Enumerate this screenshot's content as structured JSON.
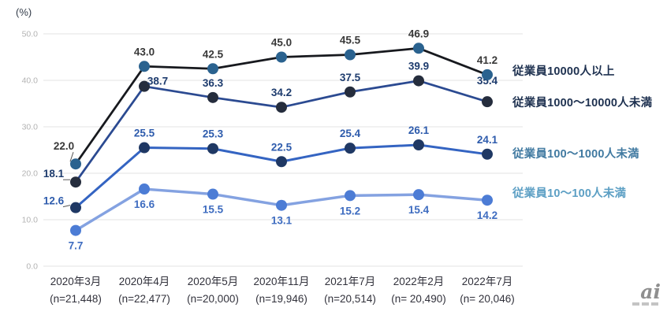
{
  "page": {
    "background": "#ffffff"
  },
  "chart_data": {
    "type": "line",
    "title": "",
    "unit_label": "(%)",
    "grid": true,
    "legend_position": "right",
    "y_axis": {
      "min": 0,
      "max": 50,
      "step": 10,
      "ticks": [
        "0.0",
        "10.0",
        "20.0",
        "30.0",
        "40.0",
        "50.0"
      ],
      "tick_color": "#b3b3b3",
      "grid_color": "#e3e3e3"
    },
    "x_categories": [
      {
        "period": "2020年3月",
        "n": "(n=21,448)"
      },
      {
        "period": "2020年4月",
        "n": "(n=22,477)"
      },
      {
        "period": "2020年5月",
        "n": "(n=20,000)"
      },
      {
        "period": "2020年11月",
        "n": "(n=19,946)"
      },
      {
        "period": "2021年7月",
        "n": "(n=20,514)"
      },
      {
        "period": "2022年2月",
        "n": "(n= 20,490)"
      },
      {
        "period": "2022年7月",
        "n": "(n= 20,046)"
      }
    ],
    "x_label_color": "#31313b",
    "series": [
      {
        "name": "従業員10000人以上",
        "values": [
          22.0,
          43.0,
          42.5,
          45.0,
          45.5,
          46.9,
          41.2
        ],
        "line_color": "#17191e",
        "marker_color": "#2a628f",
        "label_color": "#383838",
        "legend_color": "#1e3150",
        "line_width": 2.75,
        "label_side": "above",
        "first_label": {
          "dx": -15,
          "dy": -22,
          "leader": true
        },
        "label_offsets": {}
      },
      {
        "name": "従業員1000～10000人未満",
        "values": [
          18.1,
          38.7,
          36.3,
          34.2,
          37.5,
          39.9,
          35.4
        ],
        "line_color": "#2b4a91",
        "marker_color": "#252d3d",
        "label_color": "#1e3c6e",
        "legend_color": "#1e3150",
        "line_width": 2.75,
        "label_side": "above",
        "first_label": {
          "dx": -28,
          "dy": -10,
          "leader": true
        },
        "label_offsets": {
          "1": [
            17,
            12
          ],
          "6": [
            0,
            -8
          ]
        }
      },
      {
        "name": "従業員100～1000人未満",
        "values": [
          12.6,
          25.5,
          25.3,
          22.5,
          25.4,
          26.1,
          24.1
        ],
        "line_color": "#3464c2",
        "marker_color": "#1f3864",
        "label_color": "#2d5bac",
        "legend_color": "#417aa1",
        "line_width": 3,
        "label_side": "above",
        "first_label": {
          "dx": -28,
          "dy": -8,
          "leader": true
        },
        "label_offsets": {}
      },
      {
        "name": "従業員10～100人未満",
        "values": [
          7.7,
          16.6,
          15.5,
          13.1,
          15.2,
          15.4,
          14.2
        ],
        "line_color": "#84a2e1",
        "marker_color": "#4c7cd5",
        "label_color": "#3e6cc0",
        "legend_color": "#5c9fc4",
        "line_width": 3.5,
        "label_side": "below",
        "first_label": null,
        "label_offsets": {}
      }
    ],
    "leader_line_color": "#555555",
    "unit_label_color": "#333c49"
  },
  "logo": {
    "text": "ai"
  }
}
